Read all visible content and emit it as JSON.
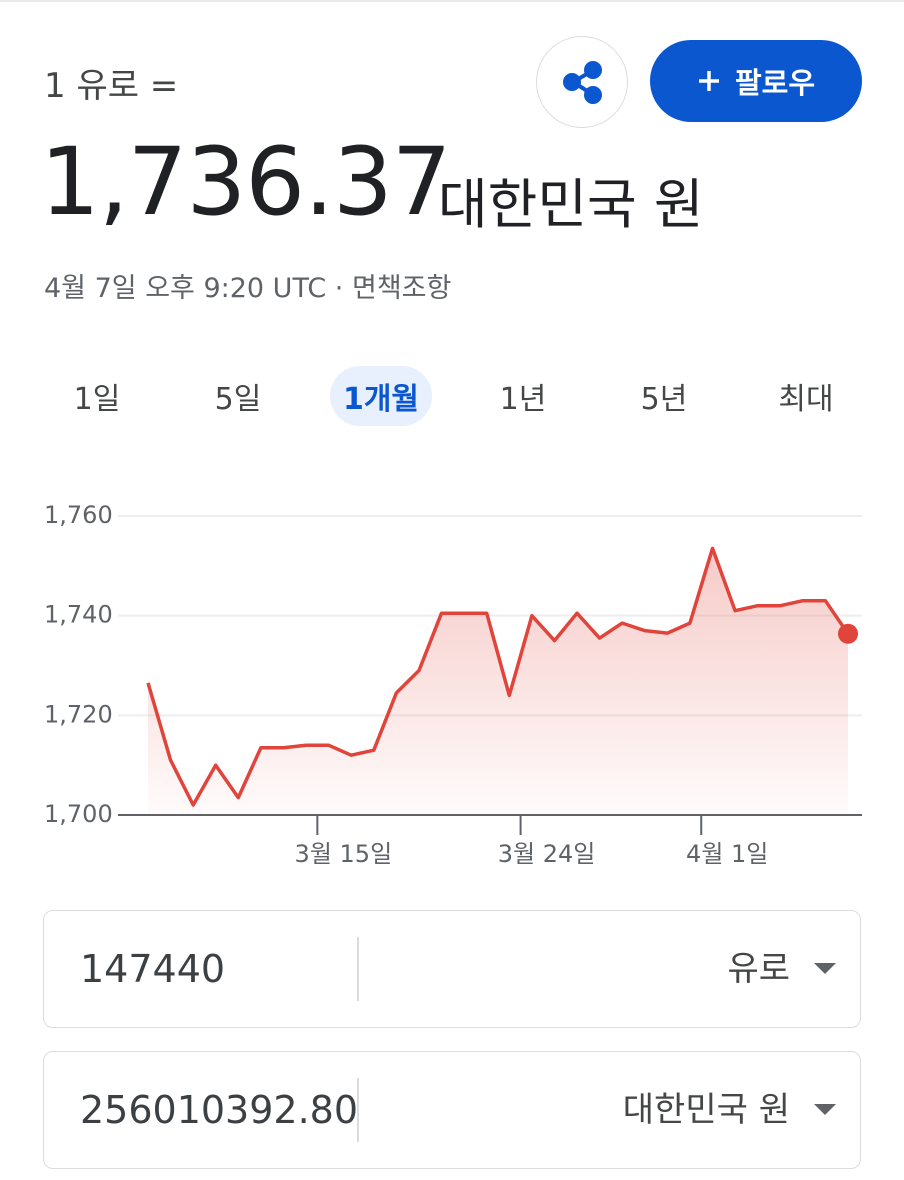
{
  "header": {
    "prefix": "1 유로 =",
    "rate": "1,736.37",
    "currency": "대한민국 원",
    "timestamp": "4월 7일 오후 9:20 UTC",
    "separator": "·",
    "disclaimer": "면책조항"
  },
  "follow_button": {
    "label": "팔로우"
  },
  "tabs": {
    "items": [
      "1일",
      "5일",
      "1개월",
      "1년",
      "5년",
      "최대"
    ],
    "selected_index": 2
  },
  "chart_data": {
    "type": "line",
    "color": "#e0443a",
    "categories": [
      null,
      null,
      null,
      null,
      null,
      null,
      null,
      "3월 15일",
      null,
      null,
      null,
      null,
      null,
      null,
      null,
      null,
      "3월 24일",
      null,
      null,
      null,
      null,
      null,
      null,
      null,
      "4월 1일",
      null,
      null,
      null,
      null,
      null,
      null,
      null
    ],
    "values": [
      1726.5,
      1711,
      1702,
      1710,
      1703.5,
      1713.5,
      1713.5,
      1714,
      1714,
      1712,
      1713,
      1724.5,
      1729,
      1740.5,
      1740.5,
      1740.5,
      1724,
      1740,
      1735,
      1740.5,
      1735.5,
      1738.5,
      1737,
      1736.5,
      1738.5,
      1753.5,
      1741,
      1742,
      1742,
      1743,
      1743,
      1736.37
    ],
    "ylim": [
      1700,
      1760
    ],
    "yticks": [
      {
        "value": 1700,
        "label": "1,700"
      },
      {
        "value": 1720,
        "label": "1,720"
      },
      {
        "value": 1740,
        "label": "1,740"
      },
      {
        "value": 1760,
        "label": "1,760"
      }
    ],
    "grid": true
  },
  "converter": {
    "rows": [
      {
        "amount": "147440",
        "currency": "유로"
      },
      {
        "amount": "256010392.80",
        "currency": "대한민국 원"
      }
    ]
  }
}
